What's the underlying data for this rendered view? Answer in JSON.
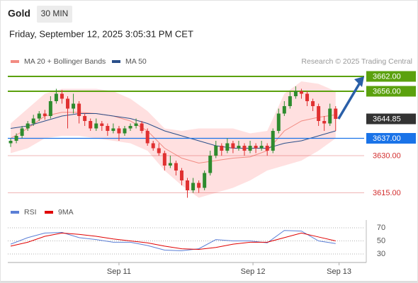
{
  "header": {
    "title": "Gold",
    "timeframe": "30 MIN",
    "timestamp": "Friday, September 12, 2025 3:05:31 PM CET"
  },
  "chart_data": [
    {
      "type": "candlestick",
      "source": "Research © 2025 Trading Central",
      "up_color": "#2e8b2e",
      "down_color": "#e03131",
      "xlim": [
        -0.5,
        62
      ],
      "ylim": [
        3612,
        3666
      ],
      "ohlc": [
        [
          3635,
          3637,
          3633.5,
          3636
        ],
        [
          3636,
          3639,
          3635,
          3638
        ],
        [
          3638,
          3642,
          3637,
          3641
        ],
        [
          3641,
          3644,
          3640,
          3643
        ],
        [
          3643,
          3646.5,
          3642,
          3645
        ],
        [
          3645,
          3648,
          3644,
          3647
        ],
        [
          3647,
          3648.5,
          3644.5,
          3646
        ],
        [
          3646,
          3654,
          3645,
          3652
        ],
        [
          3652,
          3657,
          3651,
          3655
        ],
        [
          3655,
          3656.5,
          3651,
          3653
        ],
        [
          3653,
          3654,
          3641,
          3649
        ],
        [
          3649,
          3655,
          3647,
          3651
        ],
        [
          3651,
          3652,
          3643,
          3646
        ],
        [
          3646,
          3647,
          3642,
          3644
        ],
        [
          3644,
          3645,
          3640,
          3641
        ],
        [
          3641,
          3645,
          3640,
          3643
        ],
        [
          3643,
          3644,
          3640,
          3642
        ],
        [
          3642,
          3643,
          3638,
          3640
        ],
        [
          3640,
          3643,
          3639,
          3641
        ],
        [
          3641,
          3642,
          3636,
          3639
        ],
        [
          3639,
          3642,
          3638,
          3641
        ],
        [
          3641,
          3643,
          3640,
          3642
        ],
        [
          3642,
          3645,
          3641,
          3643
        ],
        [
          3643,
          3644,
          3639,
          3640
        ],
        [
          3640,
          3641,
          3634,
          3635
        ],
        [
          3635,
          3636,
          3632,
          3633
        ],
        [
          3633,
          3635,
          3630,
          3631
        ],
        [
          3631,
          3632,
          3624,
          3626
        ],
        [
          3626,
          3630,
          3625,
          3627
        ],
        [
          3627,
          3628,
          3622,
          3624
        ],
        [
          3624,
          3625,
          3618,
          3620
        ],
        [
          3620,
          3621,
          3613,
          3616
        ],
        [
          3616,
          3621,
          3615,
          3619
        ],
        [
          3619,
          3620,
          3615,
          3617
        ],
        [
          3617,
          3624,
          3616,
          3623
        ],
        [
          3623,
          3632,
          3622,
          3630
        ],
        [
          3630,
          3636,
          3629,
          3634
        ],
        [
          3634,
          3635,
          3630,
          3632
        ],
        [
          3632,
          3637,
          3631,
          3635
        ],
        [
          3635,
          3636,
          3631,
          3633
        ],
        [
          3633,
          3636,
          3632,
          3634
        ],
        [
          3634,
          3635,
          3630,
          3632
        ],
        [
          3632,
          3636,
          3631,
          3634
        ],
        [
          3634,
          3635,
          3631,
          3633
        ],
        [
          3633,
          3636,
          3632,
          3634
        ],
        [
          3634,
          3635,
          3630,
          3632
        ],
        [
          3632,
          3641,
          3631,
          3640
        ],
        [
          3640,
          3649,
          3639,
          3647
        ],
        [
          3647,
          3652,
          3646,
          3650
        ],
        [
          3650,
          3656,
          3649,
          3654
        ],
        [
          3654,
          3658,
          3653,
          3656
        ],
        [
          3656,
          3657,
          3653,
          3655
        ],
        [
          3655,
          3656,
          3650,
          3652
        ],
        [
          3652,
          3653,
          3648,
          3650
        ],
        [
          3650,
          3651,
          3642,
          3644
        ],
        [
          3644,
          3646,
          3640,
          3643
        ],
        [
          3643,
          3651,
          3642,
          3649
        ],
        [
          3649,
          3650,
          3640,
          3644.85
        ]
      ],
      "series": [
        {
          "name": "MA 20 + Bollinger Bands",
          "color": "#f28b82",
          "band_color": "#ffd6d6",
          "x": [
            0,
            3,
            6,
            9,
            12,
            15,
            18,
            21,
            24,
            27,
            30,
            33,
            36,
            39,
            42,
            45,
            48,
            51,
            54,
            57
          ],
          "values": [
            3637,
            3641,
            3646,
            3647.5,
            3647.5,
            3647,
            3646,
            3644,
            3640,
            3633,
            3629,
            3627,
            3628,
            3629,
            3629.5,
            3632,
            3640,
            3644,
            3645.5,
            3646.5
          ],
          "upper": [
            3643,
            3649,
            3655,
            3657,
            3657,
            3657,
            3656,
            3653,
            3648,
            3641,
            3640,
            3641,
            3641,
            3641,
            3639,
            3640,
            3655,
            3660,
            3659,
            3656
          ],
          "lower": [
            3631,
            3633,
            3637,
            3638,
            3638,
            3637,
            3636,
            3635,
            3632,
            3624,
            3618,
            3613,
            3615,
            3617,
            3620,
            3624,
            3626,
            3628,
            3632,
            3637
          ]
        },
        {
          "name": "MA 50",
          "color": "#2a4f8a",
          "x": [
            0,
            3,
            6,
            9,
            12,
            15,
            18,
            21,
            24,
            27,
            30,
            33,
            36,
            39,
            42,
            45,
            48,
            51,
            54,
            57
          ],
          "values": [
            3641,
            3642,
            3644,
            3646,
            3647,
            3647,
            3646,
            3645,
            3643,
            3640,
            3638,
            3636,
            3634,
            3633,
            3633,
            3633,
            3635,
            3636,
            3638,
            3640
          ]
        }
      ],
      "levels": [
        {
          "value": 3662,
          "label": "3662.00",
          "color": "#5ba10e",
          "style": "box",
          "line": "solid"
        },
        {
          "value": 3656,
          "label": "3656.00",
          "color": "#5ba10e",
          "style": "box",
          "line": "solid"
        },
        {
          "value": 3644.85,
          "label": "3644.85",
          "color": "#333333",
          "style": "box",
          "line": "none"
        },
        {
          "value": 3637,
          "label": "3637.00",
          "color": "#1a73e8",
          "style": "box",
          "line": "solid"
        },
        {
          "value": 3630,
          "label": "3630.00",
          "color": "#d32f2f",
          "style": "text",
          "line": "thin"
        },
        {
          "value": 3615,
          "label": "3615.00",
          "color": "#d32f2f",
          "style": "text",
          "line": "thin"
        }
      ]
    },
    {
      "type": "line",
      "xlim": [
        -0.5,
        62
      ],
      "ylim": [
        20,
        80
      ],
      "yticks": [
        70,
        50,
        30
      ],
      "xticks": [
        {
          "value": 19,
          "label": "Sep 11"
        },
        {
          "value": 42.5,
          "label": "Sep 12"
        },
        {
          "value": 57.6,
          "label": "Sep 13"
        }
      ],
      "series": [
        {
          "name": "RSI",
          "color": "#5b7fd6",
          "x": [
            0,
            3,
            6,
            9,
            12,
            15,
            18,
            21,
            24,
            27,
            30,
            33,
            36,
            39,
            42,
            45,
            48,
            51,
            54,
            57
          ],
          "values": [
            45,
            55,
            62,
            63,
            55,
            52,
            48,
            48,
            43,
            36,
            35,
            38,
            52,
            50,
            50,
            47,
            66,
            65,
            50,
            46
          ]
        },
        {
          "name": "9MA",
          "color": "#e00000",
          "x": [
            0,
            3,
            6,
            9,
            12,
            15,
            18,
            21,
            24,
            27,
            30,
            33,
            36,
            39,
            42,
            45,
            48,
            51,
            54,
            57
          ],
          "values": [
            42,
            48,
            57,
            62,
            60,
            57,
            53,
            50,
            47,
            42,
            38,
            37,
            40,
            45,
            48,
            48,
            55,
            62,
            56,
            50
          ]
        }
      ]
    }
  ]
}
